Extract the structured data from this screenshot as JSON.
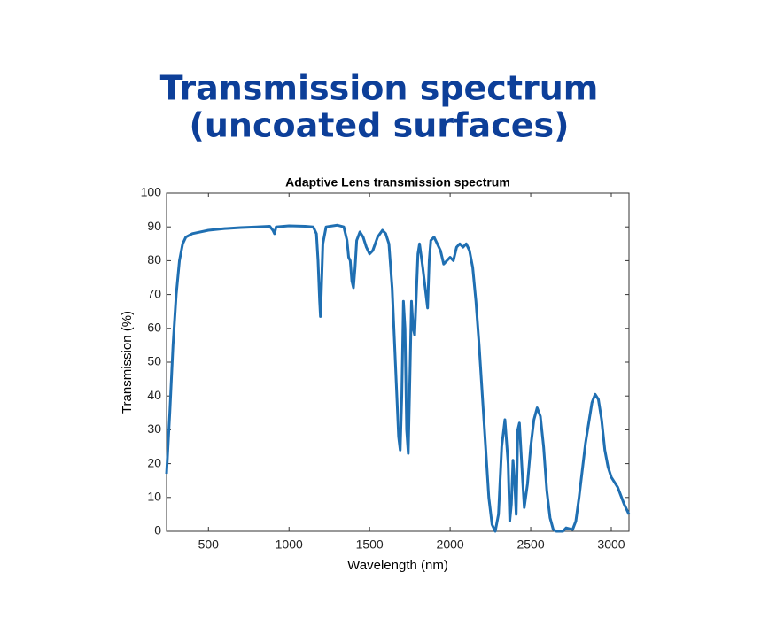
{
  "heading": [
    "Transmission spectrum",
    "(uncoated surfaces)"
  ],
  "chart_data": {
    "type": "line",
    "title": "Adaptive Lens transmission spectrum",
    "xlabel": "Wavelength (nm)",
    "ylabel": "Transmission (%)",
    "xlim": [
      240,
      3110
    ],
    "ylim": [
      0,
      100
    ],
    "xticks": [
      500,
      1000,
      1500,
      2000,
      2500,
      3000
    ],
    "yticks": [
      0,
      10,
      20,
      30,
      40,
      50,
      60,
      70,
      80,
      90,
      100
    ],
    "grid": false,
    "series": [
      {
        "name": "Transmission",
        "color": "#1f6fb2",
        "x": [
          240,
          260,
          280,
          300,
          320,
          340,
          360,
          400,
          500,
          600,
          700,
          800,
          880,
          900,
          910,
          920,
          1000,
          1100,
          1150,
          1170,
          1180,
          1190,
          1195,
          1200,
          1210,
          1230,
          1300,
          1340,
          1360,
          1370,
          1380,
          1390,
          1400,
          1410,
          1420,
          1440,
          1460,
          1480,
          1500,
          1520,
          1550,
          1580,
          1600,
          1620,
          1640,
          1660,
          1680,
          1690,
          1700,
          1710,
          1720,
          1730,
          1740,
          1750,
          1760,
          1770,
          1780,
          1790,
          1800,
          1810,
          1830,
          1850,
          1860,
          1870,
          1880,
          1900,
          1920,
          1940,
          1960,
          1980,
          2000,
          2020,
          2040,
          2060,
          2080,
          2100,
          2120,
          2140,
          2160,
          2180,
          2200,
          2220,
          2240,
          2260,
          2280,
          2300,
          2320,
          2340,
          2360,
          2370,
          2380,
          2390,
          2400,
          2410,
          2420,
          2430,
          2450,
          2460,
          2480,
          2500,
          2520,
          2540,
          2560,
          2580,
          2600,
          2620,
          2640,
          2660,
          2700,
          2720,
          2760,
          2780,
          2800,
          2820,
          2840,
          2860,
          2880,
          2900,
          2920,
          2940,
          2960,
          2980,
          3000,
          3040,
          3080,
          3110
        ],
        "values": [
          17,
          35,
          55,
          70,
          80,
          85,
          87,
          88,
          89,
          89.5,
          89.8,
          90,
          90.2,
          89,
          88,
          90,
          90.3,
          90.2,
          90,
          88,
          80,
          68,
          63.5,
          70,
          85,
          90,
          90.5,
          90,
          86,
          81,
          80,
          74,
          72,
          78,
          86,
          88.5,
          87,
          84,
          82,
          83,
          87,
          89,
          88,
          85,
          72,
          50,
          28,
          24,
          40,
          68,
          60,
          30,
          23,
          45,
          68,
          60,
          58,
          70,
          82,
          85,
          78,
          70,
          66,
          80,
          86,
          87,
          85,
          83,
          79,
          80,
          81,
          80,
          84,
          85,
          84,
          85,
          83,
          78,
          68,
          55,
          40,
          25,
          10,
          2,
          0,
          5,
          25,
          33,
          20,
          3,
          8,
          21,
          15,
          5,
          30,
          32,
          15,
          7,
          14,
          25,
          33,
          36.5,
          34,
          25,
          12,
          4,
          0.5,
          0,
          0,
          1,
          0.5,
          3,
          10,
          18,
          26,
          32,
          38,
          40.5,
          39,
          33,
          24,
          19,
          16,
          13,
          8,
          5
        ]
      }
    ]
  }
}
